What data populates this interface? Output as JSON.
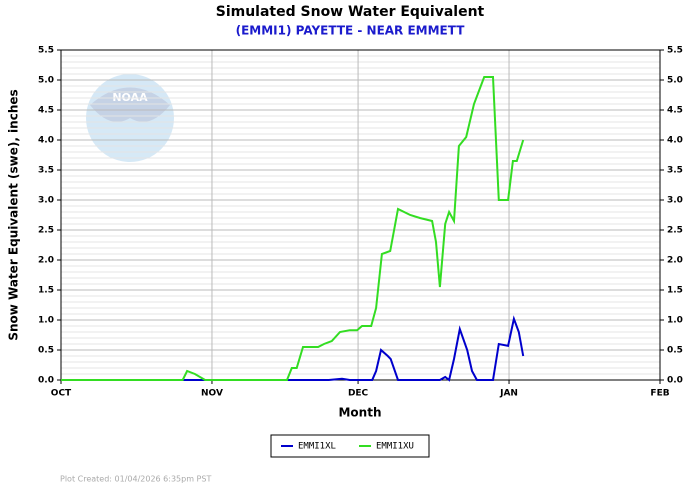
{
  "chart_data": {
    "type": "line",
    "title": "Simulated Snow Water Equivalent",
    "subtitle": "(EMMI1) PAYETTE - NEAR EMMETT",
    "x_label": "Month",
    "y_label": "Snow Water Equivalent (swe),  inches",
    "footer": "Plot Created: 01/04/2026 6:35pm PST",
    "logo_text": "NOAA",
    "xlim": [
      0,
      123
    ],
    "xticks": [
      {
        "value": 0,
        "label": "OCT"
      },
      {
        "value": 31,
        "label": "NOV"
      },
      {
        "value": 61,
        "label": "DEC"
      },
      {
        "value": 92,
        "label": "JAN"
      },
      {
        "value": 123,
        "label": "FEB"
      }
    ],
    "ylim": [
      0,
      5.5
    ],
    "yticks": [
      {
        "value": 0,
        "label": "0.0"
      },
      0.5,
      {
        "value": 1,
        "label": "1.0"
      },
      1.5,
      {
        "value": 2,
        "label": "2.0"
      },
      2.5,
      {
        "value": 3,
        "label": "3.0"
      },
      3.5,
      {
        "value": 4,
        "label": "4.0"
      },
      4.5,
      {
        "value": 5,
        "label": "5.0"
      },
      5.5
    ],
    "grid": true,
    "legend": "bottom",
    "series": [
      {
        "name": "EMMI1XL",
        "color": "#0000cc",
        "x": [
          0,
          55.0,
          57.7,
          59.3,
          63.9,
          64.7,
          65.7,
          67.1,
          67.7,
          69.2,
          77.8,
          78.9,
          79.7,
          80.7,
          81.9,
          83.4,
          84.4,
          85.4,
          88.7,
          89.9,
          91.8,
          93.0,
          94.0,
          94.9
        ],
        "values": [
          0,
          0,
          0.02,
          0,
          0,
          0.15,
          0.5,
          0.4,
          0.35,
          0,
          0,
          0.05,
          0,
          0.35,
          0.85,
          0.5,
          0.15,
          0,
          0,
          0.6,
          0.57,
          1.02,
          0.8,
          0.4
        ]
      },
      {
        "name": "EMMI1XU",
        "color": "#33dd22",
        "x": [
          0,
          25.0,
          25.9,
          27.5,
          29.6,
          46.4,
          47.4,
          48.4,
          49.7,
          52.8,
          54.0,
          55.6,
          57.3,
          59.3,
          60.8,
          61.8,
          63.7,
          64.7,
          65.9,
          67.6,
          69.2,
          71.7,
          73.7,
          76.2,
          77.0,
          77.8,
          78.9,
          79.7,
          80.7,
          81.7,
          83.2,
          84.8,
          86.9,
          88.7,
          89.9,
          91.8,
          92.8,
          93.6,
          94.9
        ],
        "values": [
          0,
          0,
          0.15,
          0.1,
          0,
          0,
          0.2,
          0.2,
          0.55,
          0.55,
          0.6,
          0.65,
          0.8,
          0.83,
          0.83,
          0.9,
          0.9,
          1.2,
          2.1,
          2.15,
          2.85,
          2.75,
          2.7,
          2.65,
          2.3,
          1.55,
          2.6,
          2.8,
          2.65,
          3.9,
          4.05,
          4.6,
          5.05,
          5.05,
          3.0,
          3.0,
          3.65,
          3.65,
          4.0
        ]
      }
    ]
  }
}
